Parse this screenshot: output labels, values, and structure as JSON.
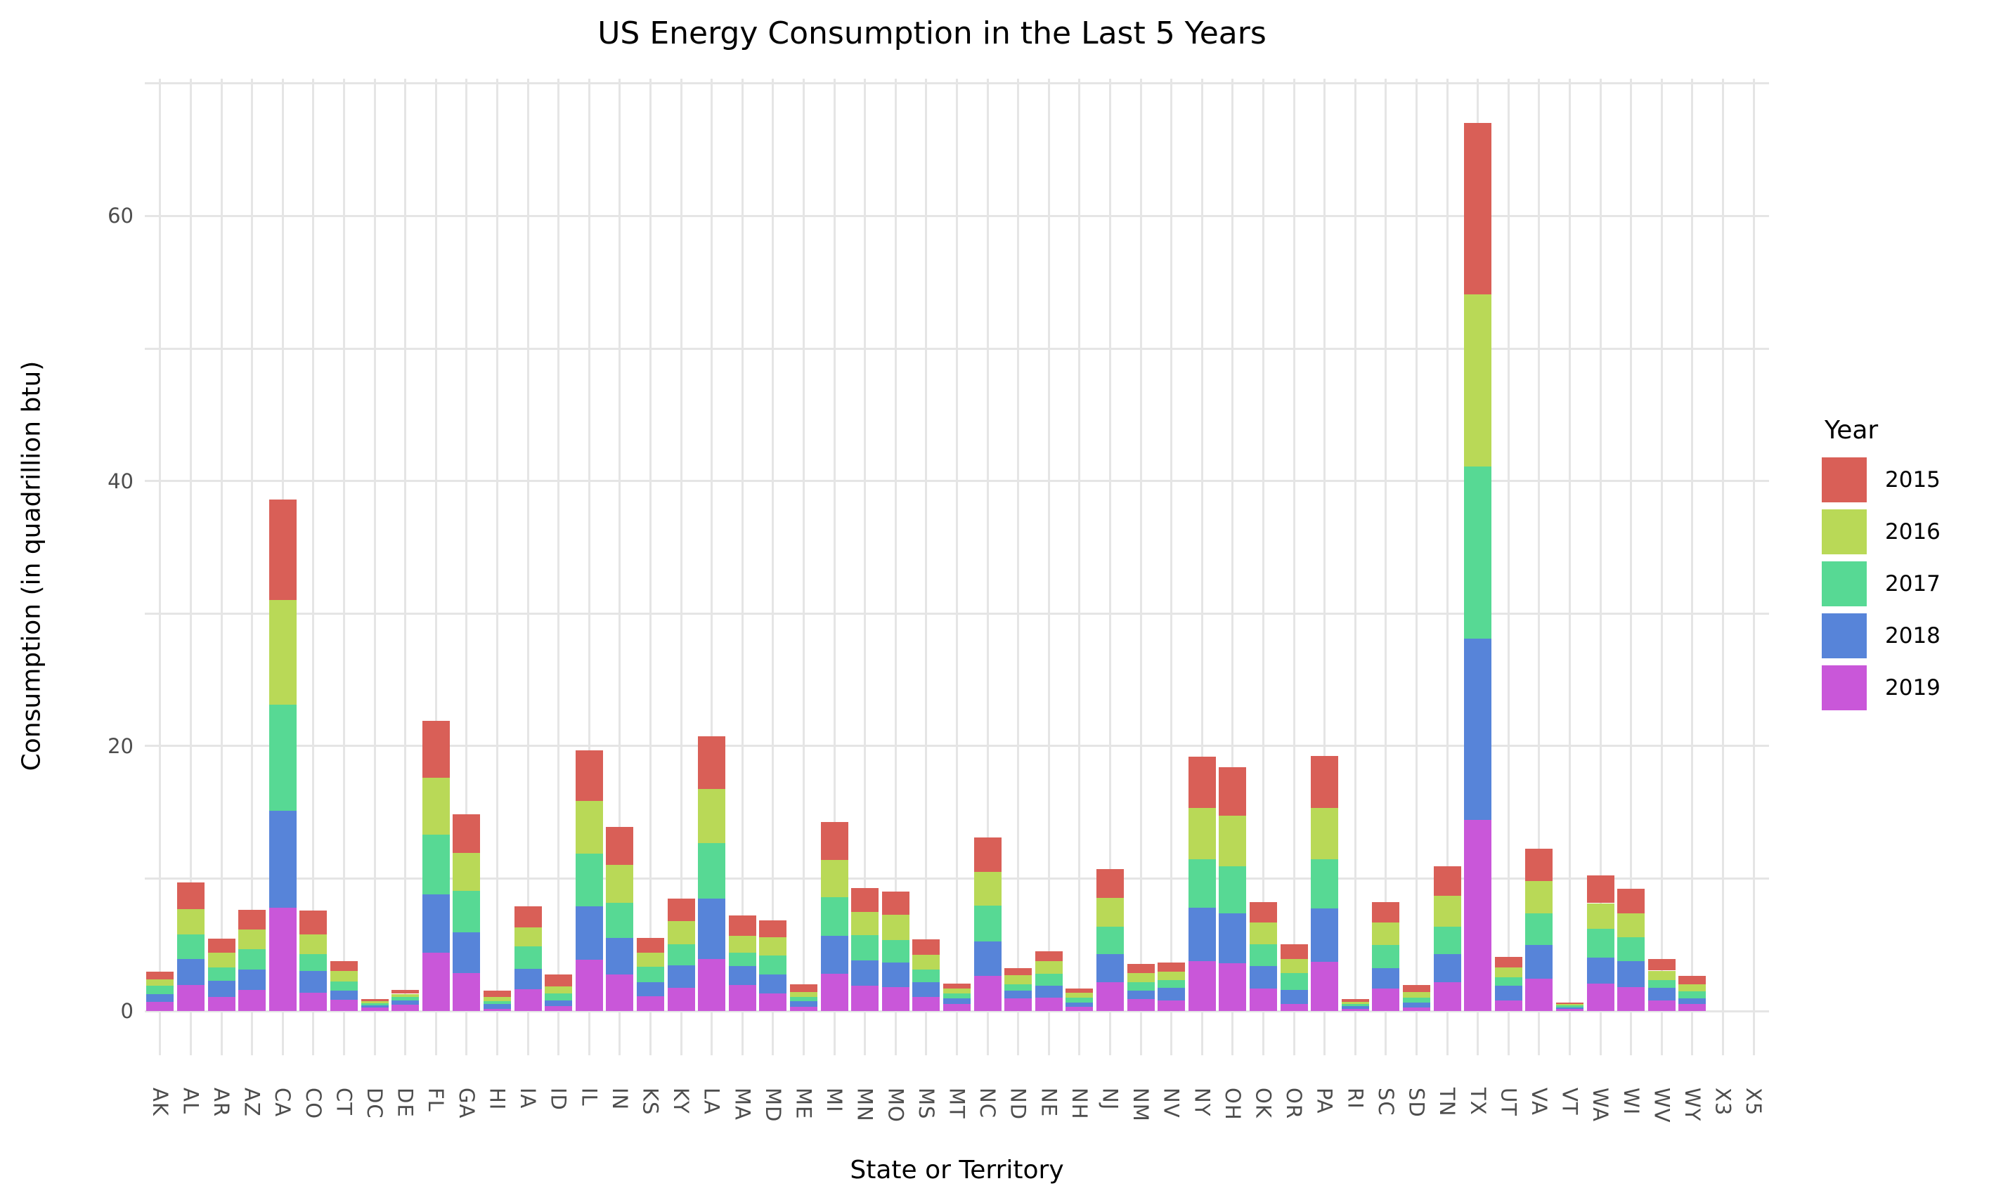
{
  "title": "US Energy Consumption in the Last 5 Years",
  "chart_data": {
    "type": "bar",
    "stacked": true,
    "title": "US Energy Consumption in the Last 5 Years",
    "xlabel": "State or Territory",
    "ylabel": "Consumption (in quadrillion btu)",
    "legend_title": "Year",
    "legend_position": "right",
    "grid": true,
    "gridline_step": 10,
    "ylim": [
      0,
      70
    ],
    "yticks": [
      0,
      20,
      40,
      60
    ],
    "stack_order_bottom_to_top": [
      "2019",
      "2018",
      "2017",
      "2016",
      "2015"
    ],
    "categories": [
      "AK",
      "AL",
      "AR",
      "AZ",
      "CA",
      "CO",
      "CT",
      "DC",
      "DE",
      "FL",
      "GA",
      "HI",
      "IA",
      "ID",
      "IL",
      "IN",
      "KS",
      "KY",
      "LA",
      "MA",
      "MD",
      "ME",
      "MI",
      "MN",
      "MO",
      "MS",
      "MT",
      "NC",
      "ND",
      "NE",
      "NH",
      "NJ",
      "NM",
      "NV",
      "NY",
      "OH",
      "OK",
      "OR",
      "PA",
      "RI",
      "SC",
      "SD",
      "TN",
      "TX",
      "UT",
      "VA",
      "VT",
      "WA",
      "WI",
      "WV",
      "WY",
      "X3",
      "X5"
    ],
    "series": [
      {
        "name": "2015",
        "color": "#d95f57",
        "values": [
          0.58,
          2.03,
          1.06,
          1.49,
          7.6,
          1.8,
          0.76,
          0.15,
          0.3,
          4.3,
          2.93,
          0.45,
          1.56,
          0.86,
          3.79,
          2.87,
          1.12,
          1.7,
          4.0,
          1.53,
          1.29,
          0.57,
          2.83,
          1.84,
          1.77,
          1.17,
          0.41,
          2.62,
          0.55,
          0.75,
          0.35,
          2.15,
          0.7,
          0.7,
          3.85,
          3.69,
          1.54,
          1.09,
          3.96,
          0.2,
          1.58,
          0.53,
          2.25,
          12.9,
          0.82,
          2.42,
          0.14,
          2.09,
          1.85,
          0.85,
          0.62,
          0,
          0
        ]
      },
      {
        "name": "2016",
        "color": "#b9d957",
        "values": [
          0.49,
          1.87,
          1.09,
          1.48,
          7.9,
          1.5,
          0.79,
          0.15,
          0.25,
          4.3,
          2.87,
          0.31,
          1.47,
          0.57,
          4.02,
          2.87,
          1.09,
          1.74,
          4.06,
          1.27,
          1.37,
          0.35,
          2.82,
          1.74,
          1.88,
          1.13,
          0.35,
          2.52,
          0.7,
          0.95,
          0.37,
          2.2,
          0.7,
          0.61,
          3.9,
          3.83,
          1.68,
          1.08,
          3.85,
          0.16,
          1.7,
          0.41,
          2.3,
          13.0,
          0.7,
          2.47,
          0.12,
          1.95,
          1.78,
          0.7,
          0.53,
          0,
          0
        ]
      },
      {
        "name": "2017",
        "color": "#57d994",
        "values": [
          0.62,
          1.89,
          1.03,
          1.56,
          8.0,
          1.3,
          0.71,
          0.15,
          0.25,
          4.5,
          3.14,
          0.25,
          1.68,
          0.49,
          3.97,
          2.64,
          1.13,
          1.6,
          4.18,
          1.03,
          1.43,
          0.35,
          2.91,
          1.89,
          1.7,
          0.96,
          0.37,
          2.7,
          0.45,
          0.9,
          0.35,
          2.05,
          0.6,
          0.61,
          3.68,
          3.54,
          1.64,
          1.27,
          3.72,
          0.16,
          1.7,
          0.35,
          2.11,
          13.0,
          0.68,
          2.4,
          0.12,
          2.15,
          1.79,
          0.6,
          0.53,
          0,
          0
        ]
      },
      {
        "name": "2018",
        "color": "#5784d9",
        "values": [
          0.62,
          1.95,
          1.18,
          1.5,
          7.3,
          1.6,
          0.67,
          0.2,
          0.3,
          4.4,
          3.05,
          0.33,
          1.54,
          0.43,
          4.0,
          2.77,
          1.07,
          1.72,
          4.57,
          1.43,
          1.44,
          0.41,
          2.87,
          1.94,
          1.85,
          1.08,
          0.45,
          2.63,
          0.6,
          0.9,
          0.33,
          2.1,
          0.65,
          0.94,
          4.0,
          3.77,
          1.7,
          1.03,
          4.0,
          0.2,
          1.58,
          0.41,
          2.09,
          13.7,
          1.09,
          2.52,
          0.14,
          1.95,
          2.01,
          0.95,
          0.44,
          0,
          0
        ]
      },
      {
        "name": "2019",
        "color": "#c957d9",
        "values": [
          0.67,
          1.96,
          1.08,
          1.61,
          7.8,
          1.4,
          0.85,
          0.25,
          0.5,
          4.4,
          2.87,
          0.18,
          1.64,
          0.39,
          3.89,
          2.75,
          1.13,
          1.74,
          3.93,
          1.95,
          1.33,
          0.31,
          2.81,
          1.89,
          1.82,
          1.07,
          0.51,
          2.64,
          0.95,
          1.0,
          0.32,
          2.2,
          0.9,
          0.8,
          3.77,
          3.59,
          1.68,
          0.55,
          3.73,
          0.18,
          1.68,
          0.25,
          2.19,
          14.4,
          0.8,
          2.44,
          0.14,
          2.09,
          1.78,
          0.8,
          0.53,
          0,
          0
        ]
      }
    ],
    "colors": {
      "grid": "#e5e5e5",
      "tick_label": "#4d4d4d",
      "text": "#000000",
      "background": "#ffffff"
    }
  }
}
